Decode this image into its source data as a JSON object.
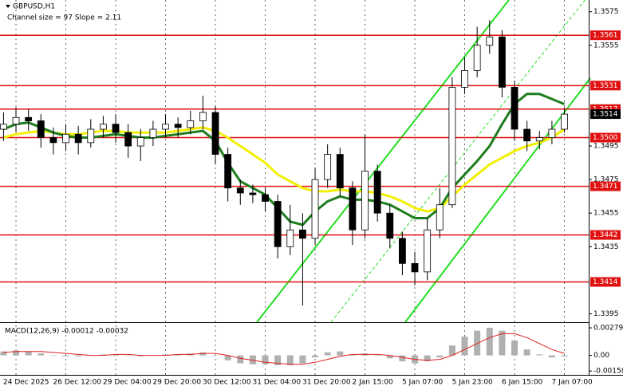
{
  "chart_data": {
    "type": "candlestick",
    "title": "GBPUSD,H1",
    "subtitle": "Channel size = 97 Slope = 2.11",
    "categories": [
      null,
      "24 Dec 2025",
      null,
      null,
      null,
      "26 Dec 12:00",
      null,
      null,
      null,
      "29 Dec 04:00",
      null,
      null,
      null,
      "29 Dec 20:00",
      null,
      null,
      null,
      "30 Dec 12:00",
      null,
      null,
      null,
      "31 Dec 04:00",
      null,
      null,
      null,
      "31 Dec 20:00",
      null,
      null,
      null,
      "2 Jan 15:00",
      null,
      null,
      null,
      "5 Jan 07:00",
      null,
      null,
      null,
      "5 Jan 23:00",
      null,
      null,
      null,
      "6 Jan 15:00",
      null,
      null,
      null,
      "7 Jan 07:00"
    ],
    "open": [
      1.3505,
      1.3508,
      1.3512,
      1.351,
      1.35,
      1.3497,
      1.3502,
      1.3497,
      1.3505,
      1.3508,
      1.3503,
      1.3495,
      1.35,
      1.3505,
      1.3508,
      1.3506,
      1.351,
      1.3515,
      1.349,
      1.347,
      1.3467,
      1.3466,
      1.3462,
      1.3435,
      1.3445,
      1.344,
      1.3475,
      1.349,
      1.347,
      1.3445,
      1.348,
      1.3455,
      1.344,
      1.3425,
      1.342,
      1.3445,
      1.346,
      1.353,
      1.354,
      1.3555,
      1.356,
      1.353,
      1.3505,
      1.3498,
      1.35,
      1.3505
    ],
    "high": [
      1.3515,
      1.3518,
      1.3517,
      1.3514,
      1.3506,
      1.3508,
      1.3507,
      1.3511,
      1.3513,
      1.3514,
      1.3508,
      1.3505,
      1.351,
      1.3514,
      1.3512,
      1.3516,
      1.3525,
      1.3519,
      1.3494,
      1.3475,
      1.3472,
      1.347,
      1.3466,
      1.346,
      1.3455,
      1.3482,
      1.3496,
      1.3494,
      1.3474,
      1.3502,
      1.3484,
      1.346,
      1.3444,
      1.3432,
      1.3452,
      1.347,
      1.3536,
      1.3548,
      1.3566,
      1.357,
      1.3564,
      1.3534,
      1.351,
      1.3504,
      1.351,
      1.3518
    ],
    "low": [
      1.3498,
      1.3503,
      1.3504,
      1.3494,
      1.349,
      1.3492,
      1.349,
      1.3494,
      1.35,
      1.3497,
      1.3488,
      1.3486,
      1.3495,
      1.35,
      1.35,
      1.3502,
      1.3505,
      1.3484,
      1.3462,
      1.346,
      1.3461,
      1.3456,
      1.3428,
      1.343,
      1.34,
      1.3436,
      1.347,
      1.3465,
      1.3436,
      1.344,
      1.345,
      1.3434,
      1.3418,
      1.3412,
      1.3415,
      1.344,
      1.3458,
      1.3526,
      1.3536,
      1.355,
      1.3524,
      1.3498,
      1.3492,
      1.3493,
      1.3496,
      1.3503
    ],
    "close": [
      1.3508,
      1.3512,
      1.351,
      1.35,
      1.3497,
      1.3502,
      1.3497,
      1.3505,
      1.3508,
      1.3503,
      1.3495,
      1.35,
      1.3505,
      1.3508,
      1.3506,
      1.351,
      1.3515,
      1.349,
      1.347,
      1.3467,
      1.3466,
      1.3462,
      1.3435,
      1.3445,
      1.344,
      1.3475,
      1.349,
      1.347,
      1.3445,
      1.348,
      1.3455,
      1.344,
      1.3425,
      1.342,
      1.3445,
      1.346,
      1.353,
      1.354,
      1.3555,
      1.356,
      1.353,
      1.3505,
      1.3498,
      1.35,
      1.3505,
      1.3514
    ],
    "series": [
      {
        "color": "#f2ef00",
        "values": [
          1.35,
          1.3502,
          1.3503,
          1.3504,
          1.3503,
          1.3502,
          1.3502,
          1.3503,
          1.3504,
          1.3504,
          1.3503,
          1.3503,
          1.3503,
          1.3503,
          1.3504,
          1.3505,
          1.3506,
          1.3504,
          1.35,
          1.3495,
          1.349,
          1.3485,
          1.3478,
          1.3474,
          1.347,
          1.3468,
          1.3468,
          1.3469,
          1.3468,
          1.3468,
          1.3467,
          1.3465,
          1.3462,
          1.3458,
          1.3456,
          1.3458,
          1.3465,
          1.3472,
          1.3478,
          1.3484,
          1.3488,
          1.3492,
          1.3495,
          1.3497,
          1.35,
          1.3505
        ]
      },
      {
        "color": "#1e7d1e",
        "values": [
          1.3505,
          1.3508,
          1.3509,
          1.3506,
          1.3503,
          1.3501,
          1.35,
          1.35,
          1.3501,
          1.3502,
          1.3501,
          1.35,
          1.35,
          1.3501,
          1.3502,
          1.3503,
          1.3504,
          1.3498,
          1.3485,
          1.3474,
          1.347,
          1.3466,
          1.3458,
          1.345,
          1.3448,
          1.3456,
          1.3462,
          1.3465,
          1.3463,
          1.3463,
          1.3462,
          1.346,
          1.3456,
          1.3452,
          1.3452,
          1.3458,
          1.347,
          1.3478,
          1.3486,
          1.3495,
          1.3508,
          1.352,
          1.3526,
          1.3526,
          1.3523,
          1.352
        ]
      }
    ],
    "ylim": [
      1.339,
      1.3582
    ],
    "yticks": [
      1.3575,
      1.3555,
      1.3495,
      1.3475,
      1.3455,
      1.3435,
      1.3395
    ],
    "levels": [
      1.3561,
      1.3531,
      1.3517,
      {
        "value": 1.35,
        "label": "1.3500"
      },
      1.3471,
      1.3442,
      1.3414
    ],
    "level_color": "#e01010",
    "last_price": 1.3514,
    "macd": {
      "title": "MACD(12,26,9) -0.00012 -0.00032",
      "histogram": [
        0.0004,
        0.0005,
        0.0004,
        0.0002,
        0.0,
        -0.0001,
        -0.0001,
        0.0,
        0.0001,
        0.0001,
        0.0,
        -0.0001,
        0.0,
        0.0001,
        0.0001,
        0.0002,
        0.0003,
        0.0,
        -0.0005,
        -0.0008,
        -0.0009,
        -0.0009,
        -0.001,
        -0.001,
        -0.0008,
        -0.0002,
        0.0003,
        0.0004,
        0.0001,
        0.0002,
        0.0,
        -0.0003,
        -0.0006,
        -0.0008,
        -0.0006,
        -0.0002,
        0.001,
        0.0019,
        0.0025,
        0.0028,
        0.0025,
        0.0015,
        0.0006,
        0.0001,
        -0.0002,
        -0.0001
      ],
      "signal": [
        0.0003,
        0.0004,
        0.0004,
        0.0004,
        0.0003,
        0.0002,
        0.0001,
        0.0,
        0.0,
        0.0001,
        0.0001,
        0.0,
        0.0,
        0.0,
        0.0001,
        0.0001,
        0.0002,
        0.0002,
        0.0,
        -0.0003,
        -0.0005,
        -0.0007,
        -0.0008,
        -0.0009,
        -0.0009,
        -0.0007,
        -0.0004,
        -0.0001,
        0.0001,
        0.0001,
        0.0001,
        0.0,
        -0.0002,
        -0.0004,
        -0.0005,
        -0.0004,
        0.0,
        0.0006,
        0.0012,
        0.0018,
        0.0022,
        0.0022,
        0.0018,
        0.0012,
        0.0006,
        0.0002
      ],
      "histogram_color": "#b0b0b0",
      "signal_color": "#e02020",
      "ylim": [
        -0.00197,
        0.00328
      ],
      "yticks": [
        0.00279,
        {
          "value": 0,
          "label": "0.00"
        },
        -0.00158
      ]
    }
  }
}
